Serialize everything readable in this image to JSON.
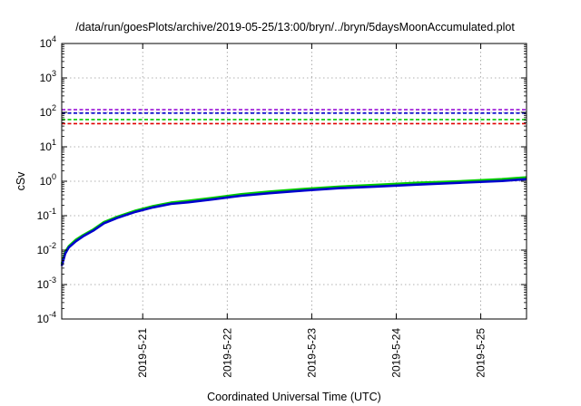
{
  "chart_data": {
    "type": "line",
    "title": "/data/run/goesPlots/archive/2019-05-25/13:00/bryn/../bryn/5daysMoonAccumulated.plot",
    "xlabel": "Coordinated Universal Time (UTC)",
    "ylabel": "cSv",
    "xlim": [
      "2019-05-20 01:00",
      "2019-05-25 13:00"
    ],
    "x_ticks": [
      "2019-5-21",
      "2019-5-22",
      "2019-5-23",
      "2019-5-24",
      "2019-5-25"
    ],
    "y_scale": "log",
    "ylim": [
      0.0001,
      10000
    ],
    "y_ticks": [
      {
        "base": "10",
        "exp": "-4",
        "value": 0.0001
      },
      {
        "base": "10",
        "exp": "-3",
        "value": 0.001
      },
      {
        "base": "10",
        "exp": "-2",
        "value": 0.01
      },
      {
        "base": "10",
        "exp": "-1",
        "value": 0.1
      },
      {
        "base": "10",
        "exp": "0",
        "value": 1
      },
      {
        "base": "10",
        "exp": "1",
        "value": 10
      },
      {
        "base": "10",
        "exp": "2",
        "value": 100
      },
      {
        "base": "10",
        "exp": "3",
        "value": 1000
      },
      {
        "base": "10",
        "exp": "4",
        "value": 10000
      }
    ],
    "grid": true,
    "thresholds": [
      {
        "value": 120,
        "color": "#9400d3"
      },
      {
        "value": 95,
        "color": "#0000cc"
      },
      {
        "value": 62,
        "color": "#00cc00"
      },
      {
        "value": 47,
        "color": "#e00000"
      }
    ],
    "series": [
      {
        "color": "#00cc00",
        "points": [
          [
            "2019-05-20 01:00",
            0.004
          ],
          [
            "2019-05-20 02:00",
            0.009
          ],
          [
            "2019-05-20 03:00",
            0.013
          ],
          [
            "2019-05-20 05:00",
            0.02
          ],
          [
            "2019-05-20 07:00",
            0.027
          ],
          [
            "2019-05-20 10:00",
            0.04
          ],
          [
            "2019-05-20 13:00",
            0.065
          ],
          [
            "2019-05-20 17:00",
            0.095
          ],
          [
            "2019-05-20 22:00",
            0.14
          ],
          [
            "2019-05-21 03:00",
            0.19
          ],
          [
            "2019-05-21 08:00",
            0.24
          ],
          [
            "2019-05-21 13:00",
            0.27
          ],
          [
            "2019-05-21 20:00",
            0.33
          ],
          [
            "2019-05-22 04:00",
            0.42
          ],
          [
            "2019-05-22 12:00",
            0.5
          ],
          [
            "2019-05-22 22:00",
            0.6
          ],
          [
            "2019-05-23 08:00",
            0.7
          ],
          [
            "2019-05-23 18:00",
            0.78
          ],
          [
            "2019-05-24 06:00",
            0.9
          ],
          [
            "2019-05-24 18:00",
            1.0
          ],
          [
            "2019-05-25 06:00",
            1.15
          ],
          [
            "2019-05-25 13:00",
            1.3
          ]
        ]
      },
      {
        "color": "#0000cc",
        "points": [
          [
            "2019-05-20 01:00",
            0.0035
          ],
          [
            "2019-05-20 02:00",
            0.008
          ],
          [
            "2019-05-20 03:00",
            0.012
          ],
          [
            "2019-05-20 05:00",
            0.018
          ],
          [
            "2019-05-20 07:00",
            0.025
          ],
          [
            "2019-05-20 10:00",
            0.037
          ],
          [
            "2019-05-20 13:00",
            0.06
          ],
          [
            "2019-05-20 17:00",
            0.088
          ],
          [
            "2019-05-20 22:00",
            0.13
          ],
          [
            "2019-05-21 03:00",
            0.175
          ],
          [
            "2019-05-21 08:00",
            0.22
          ],
          [
            "2019-05-21 13:00",
            0.245
          ],
          [
            "2019-05-21 20:00",
            0.3
          ],
          [
            "2019-05-22 04:00",
            0.38
          ],
          [
            "2019-05-22 12:00",
            0.45
          ],
          [
            "2019-05-22 22:00",
            0.54
          ],
          [
            "2019-05-23 08:00",
            0.63
          ],
          [
            "2019-05-23 18:00",
            0.7
          ],
          [
            "2019-05-24 06:00",
            0.8
          ],
          [
            "2019-05-24 18:00",
            0.9
          ],
          [
            "2019-05-25 06:00",
            1.02
          ],
          [
            "2019-05-25 13:00",
            1.15
          ]
        ]
      }
    ]
  }
}
